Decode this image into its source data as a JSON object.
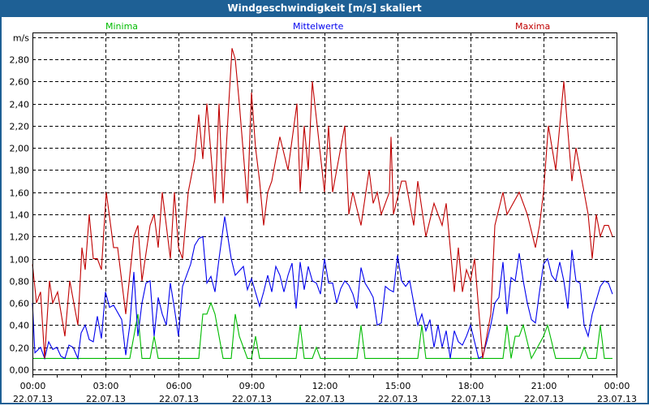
{
  "window": {
    "title": "Windgeschwindigkeit [m/s] skaliert"
  },
  "chart_data": {
    "type": "line",
    "title": "Windgeschwindigkeit [m/s] skaliert",
    "ylabel": "m/s",
    "ylim": [
      0,
      3.0
    ],
    "yticks": [
      "0,00",
      "0,20",
      "0,40",
      "0,60",
      "0,80",
      "1,00",
      "1,20",
      "1,40",
      "1,60",
      "1,80",
      "2,00",
      "2,20",
      "2,40",
      "2,60",
      "2,80"
    ],
    "xticks": [
      {
        "time": "00:00",
        "date": "22.07.13"
      },
      {
        "time": "03:00",
        "date": "22.07.13"
      },
      {
        "time": "06:00",
        "date": "22.07.13"
      },
      {
        "time": "09:00",
        "date": "22.07.13"
      },
      {
        "time": "12:00",
        "date": "22.07.13"
      },
      {
        "time": "15:00",
        "date": "22.07.13"
      },
      {
        "time": "18:00",
        "date": "22.07.13"
      },
      {
        "time": "21:00",
        "date": "22.07.13"
      },
      {
        "time": "00:00",
        "date": "23.07.13"
      }
    ],
    "xlim": [
      "22.07.13 00:00",
      "23.07.13 00:00"
    ],
    "grid": true,
    "legend_placement": "top",
    "series": [
      {
        "name": "Minima",
        "color": "#00bb00",
        "points": [
          [
            "00:00",
            0.1
          ],
          [
            "04:00",
            0.1
          ],
          [
            "04:20",
            0.5
          ],
          [
            "04:30",
            0.1
          ],
          [
            "04:50",
            0.1
          ],
          [
            "05:00",
            0.3
          ],
          [
            "05:10",
            0.1
          ],
          [
            "06:50",
            0.1
          ],
          [
            "07:00",
            0.5
          ],
          [
            "07:10",
            0.5
          ],
          [
            "07:20",
            0.6
          ],
          [
            "07:30",
            0.5
          ],
          [
            "07:50",
            0.1
          ],
          [
            "08:10",
            0.1
          ],
          [
            "08:20",
            0.5
          ],
          [
            "08:30",
            0.3
          ],
          [
            "08:50",
            0.1
          ],
          [
            "09:00",
            0.1
          ],
          [
            "09:10",
            0.3
          ],
          [
            "09:20",
            0.1
          ],
          [
            "10:50",
            0.1
          ],
          [
            "11:00",
            0.4
          ],
          [
            "11:10",
            0.1
          ],
          [
            "11:30",
            0.1
          ],
          [
            "11:40",
            0.2
          ],
          [
            "11:50",
            0.1
          ],
          [
            "13:20",
            0.1
          ],
          [
            "13:30",
            0.4
          ],
          [
            "13:40",
            0.1
          ],
          [
            "15:50",
            0.1
          ],
          [
            "16:00",
            0.4
          ],
          [
            "16:10",
            0.1
          ],
          [
            "19:20",
            0.1
          ],
          [
            "19:30",
            0.4
          ],
          [
            "19:40",
            0.1
          ],
          [
            "19:50",
            0.3
          ],
          [
            "20:00",
            0.3
          ],
          [
            "20:10",
            0.4
          ],
          [
            "20:30",
            0.1
          ],
          [
            "21:00",
            0.3
          ],
          [
            "21:10",
            0.4
          ],
          [
            "21:30",
            0.1
          ],
          [
            "22:30",
            0.1
          ],
          [
            "22:40",
            0.2
          ],
          [
            "22:50",
            0.1
          ],
          [
            "23:10",
            0.1
          ],
          [
            "23:20",
            0.4
          ],
          [
            "23:30",
            0.1
          ],
          [
            "23:50",
            0.1
          ]
        ]
      },
      {
        "name": "Mittelwerte",
        "color": "#0000ee",
        "points": [
          [
            "00:00",
            0.6
          ],
          [
            "00:06",
            0.15
          ],
          [
            "00:20",
            0.2
          ],
          [
            "00:30",
            0.1
          ],
          [
            "00:40",
            0.25
          ],
          [
            "00:50",
            0.18
          ],
          [
            "01:00",
            0.2
          ],
          [
            "01:10",
            0.12
          ],
          [
            "01:20",
            0.1
          ],
          [
            "01:30",
            0.22
          ],
          [
            "01:40",
            0.2
          ],
          [
            "01:52",
            0.1
          ],
          [
            "02:00",
            0.33
          ],
          [
            "02:10",
            0.4
          ],
          [
            "02:20",
            0.27
          ],
          [
            "02:30",
            0.25
          ],
          [
            "02:40",
            0.48
          ],
          [
            "02:50",
            0.28
          ],
          [
            "03:00",
            0.7
          ],
          [
            "03:10",
            0.56
          ],
          [
            "03:20",
            0.58
          ],
          [
            "03:40",
            0.45
          ],
          [
            "03:50",
            0.13
          ],
          [
            "04:00",
            0.4
          ],
          [
            "04:10",
            0.88
          ],
          [
            "04:20",
            0.3
          ],
          [
            "04:30",
            0.6
          ],
          [
            "04:40",
            0.78
          ],
          [
            "04:50",
            0.8
          ],
          [
            "05:00",
            0.3
          ],
          [
            "05:10",
            0.65
          ],
          [
            "05:20",
            0.5
          ],
          [
            "05:30",
            0.4
          ],
          [
            "05:40",
            0.78
          ],
          [
            "05:50",
            0.55
          ],
          [
            "06:00",
            0.3
          ],
          [
            "06:10",
            0.75
          ],
          [
            "06:30",
            0.95
          ],
          [
            "06:40",
            1.12
          ],
          [
            "06:50",
            1.18
          ],
          [
            "07:00",
            1.2
          ],
          [
            "07:10",
            0.78
          ],
          [
            "07:20",
            0.84
          ],
          [
            "07:30",
            0.7
          ],
          [
            "07:40",
            1.0
          ],
          [
            "07:54",
            1.38
          ],
          [
            "08:10",
            1.0
          ],
          [
            "08:20",
            0.85
          ],
          [
            "08:40",
            0.93
          ],
          [
            "08:50",
            0.72
          ],
          [
            "09:00",
            0.82
          ],
          [
            "09:20",
            0.57
          ],
          [
            "09:30",
            0.7
          ],
          [
            "09:40",
            0.85
          ],
          [
            "09:50",
            0.7
          ],
          [
            "10:00",
            0.93
          ],
          [
            "10:10",
            0.85
          ],
          [
            "10:20",
            0.7
          ],
          [
            "10:30",
            0.85
          ],
          [
            "10:40",
            0.96
          ],
          [
            "10:50",
            0.55
          ],
          [
            "11:00",
            0.97
          ],
          [
            "11:10",
            0.72
          ],
          [
            "11:20",
            0.93
          ],
          [
            "11:30",
            0.8
          ],
          [
            "11:40",
            0.78
          ],
          [
            "11:50",
            0.68
          ],
          [
            "12:00",
            1.0
          ],
          [
            "12:10",
            0.78
          ],
          [
            "12:20",
            0.78
          ],
          [
            "12:30",
            0.6
          ],
          [
            "12:40",
            0.73
          ],
          [
            "12:50",
            0.8
          ],
          [
            "13:00",
            0.76
          ],
          [
            "13:10",
            0.68
          ],
          [
            "13:20",
            0.55
          ],
          [
            "13:30",
            0.92
          ],
          [
            "13:40",
            0.78
          ],
          [
            "13:50",
            0.72
          ],
          [
            "14:00",
            0.65
          ],
          [
            "14:10",
            0.4
          ],
          [
            "14:20",
            0.42
          ],
          [
            "14:30",
            0.75
          ],
          [
            "14:40",
            0.72
          ],
          [
            "14:50",
            0.7
          ],
          [
            "15:00",
            1.03
          ],
          [
            "15:10",
            0.8
          ],
          [
            "15:20",
            0.75
          ],
          [
            "15:30",
            0.8
          ],
          [
            "15:40",
            0.6
          ],
          [
            "15:50",
            0.4
          ],
          [
            "16:00",
            0.5
          ],
          [
            "16:10",
            0.35
          ],
          [
            "16:20",
            0.45
          ],
          [
            "16:30",
            0.2
          ],
          [
            "16:40",
            0.4
          ],
          [
            "16:50",
            0.2
          ],
          [
            "17:00",
            0.35
          ],
          [
            "17:10",
            0.1
          ],
          [
            "17:20",
            0.35
          ],
          [
            "17:30",
            0.25
          ],
          [
            "17:40",
            0.22
          ],
          [
            "17:50",
            0.3
          ],
          [
            "18:00",
            0.4
          ],
          [
            "18:10",
            0.25
          ],
          [
            "18:20",
            0.1
          ],
          [
            "18:30",
            0.12
          ],
          [
            "18:40",
            0.25
          ],
          [
            "18:50",
            0.4
          ],
          [
            "19:00",
            0.6
          ],
          [
            "19:10",
            0.65
          ],
          [
            "19:20",
            0.97
          ],
          [
            "19:30",
            0.5
          ],
          [
            "19:40",
            0.83
          ],
          [
            "19:50",
            0.8
          ],
          [
            "20:00",
            1.05
          ],
          [
            "20:10",
            0.8
          ],
          [
            "20:20",
            0.6
          ],
          [
            "20:30",
            0.45
          ],
          [
            "20:40",
            0.42
          ],
          [
            "20:50",
            0.7
          ],
          [
            "21:00",
            0.95
          ],
          [
            "21:10",
            1.0
          ],
          [
            "21:20",
            0.85
          ],
          [
            "21:30",
            0.8
          ],
          [
            "21:40",
            0.97
          ],
          [
            "21:50",
            0.8
          ],
          [
            "22:00",
            0.55
          ],
          [
            "22:10",
            1.08
          ],
          [
            "22:20",
            0.8
          ],
          [
            "22:30",
            0.78
          ],
          [
            "22:40",
            0.4
          ],
          [
            "22:50",
            0.3
          ],
          [
            "23:00",
            0.5
          ],
          [
            "23:20",
            0.75
          ],
          [
            "23:30",
            0.8
          ],
          [
            "23:40",
            0.78
          ],
          [
            "23:50",
            0.68
          ]
        ]
      },
      {
        "name": "Maxima",
        "color": "#c00000",
        "points": [
          [
            "00:00",
            0.95
          ],
          [
            "00:10",
            0.6
          ],
          [
            "00:20",
            0.7
          ],
          [
            "00:30",
            0.1
          ],
          [
            "00:42",
            0.8
          ],
          [
            "00:50",
            0.6
          ],
          [
            "01:02",
            0.7
          ],
          [
            "01:20",
            0.3
          ],
          [
            "01:32",
            0.8
          ],
          [
            "01:52",
            0.4
          ],
          [
            "02:02",
            1.1
          ],
          [
            "02:10",
            0.9
          ],
          [
            "02:20",
            1.4
          ],
          [
            "02:30",
            1.0
          ],
          [
            "02:40",
            1.0
          ],
          [
            "02:50",
            0.9
          ],
          [
            "03:02",
            1.6
          ],
          [
            "03:20",
            1.1
          ],
          [
            "03:30",
            1.1
          ],
          [
            "03:50",
            0.5
          ],
          [
            "04:10",
            1.2
          ],
          [
            "04:20",
            1.3
          ],
          [
            "04:30",
            0.8
          ],
          [
            "04:50",
            1.3
          ],
          [
            "05:00",
            1.4
          ],
          [
            "05:10",
            1.1
          ],
          [
            "05:20",
            1.6
          ],
          [
            "05:40",
            1.0
          ],
          [
            "05:50",
            1.6
          ],
          [
            "06:00",
            1.1
          ],
          [
            "06:10",
            1.0
          ],
          [
            "06:24",
            1.6
          ],
          [
            "06:40",
            1.9
          ],
          [
            "06:50",
            2.3
          ],
          [
            "07:00",
            1.9
          ],
          [
            "07:10",
            2.4
          ],
          [
            "07:30",
            1.5
          ],
          [
            "07:40",
            2.4
          ],
          [
            "07:50",
            1.5
          ],
          [
            "08:04",
            2.4
          ],
          [
            "08:12",
            2.9
          ],
          [
            "08:20",
            2.8
          ],
          [
            "08:30",
            2.4
          ],
          [
            "08:50",
            1.5
          ],
          [
            "09:00",
            2.5
          ],
          [
            "09:10",
            2.0
          ],
          [
            "09:20",
            1.7
          ],
          [
            "09:30",
            1.3
          ],
          [
            "09:40",
            1.6
          ],
          [
            "09:50",
            1.7
          ],
          [
            "10:10",
            2.1
          ],
          [
            "10:30",
            1.8
          ],
          [
            "10:52",
            2.4
          ],
          [
            "11:00",
            1.6
          ],
          [
            "11:10",
            2.2
          ],
          [
            "11:20",
            1.8
          ],
          [
            "11:30",
            2.6
          ],
          [
            "12:00",
            1.6
          ],
          [
            "12:10",
            2.2
          ],
          [
            "12:20",
            1.6
          ],
          [
            "12:50",
            2.2
          ],
          [
            "13:00",
            1.4
          ],
          [
            "13:10",
            1.6
          ],
          [
            "13:30",
            1.3
          ],
          [
            "13:50",
            1.8
          ],
          [
            "14:00",
            1.5
          ],
          [
            "14:10",
            1.6
          ],
          [
            "14:20",
            1.4
          ],
          [
            "14:40",
            1.6
          ],
          [
            "14:44",
            2.1
          ],
          [
            "14:50",
            1.4
          ],
          [
            "15:10",
            1.7
          ],
          [
            "15:20",
            1.7
          ],
          [
            "15:40",
            1.3
          ],
          [
            "15:50",
            1.7
          ],
          [
            "16:10",
            1.2
          ],
          [
            "16:30",
            1.5
          ],
          [
            "16:50",
            1.3
          ],
          [
            "17:00",
            1.5
          ],
          [
            "17:20",
            0.7
          ],
          [
            "17:30",
            1.1
          ],
          [
            "17:40",
            0.7
          ],
          [
            "17:50",
            0.9
          ],
          [
            "18:00",
            0.8
          ],
          [
            "18:10",
            1.0
          ],
          [
            "18:30",
            0.1
          ],
          [
            "18:50",
            0.5
          ],
          [
            "19:00",
            1.3
          ],
          [
            "19:20",
            1.6
          ],
          [
            "19:30",
            1.4
          ],
          [
            "20:00",
            1.6
          ],
          [
            "20:20",
            1.4
          ],
          [
            "20:40",
            1.1
          ],
          [
            "20:50",
            1.3
          ],
          [
            "21:00",
            1.6
          ],
          [
            "21:12",
            2.2
          ],
          [
            "21:30",
            1.8
          ],
          [
            "21:50",
            2.6
          ],
          [
            "22:10",
            1.7
          ],
          [
            "22:20",
            2.0
          ],
          [
            "22:40",
            1.6
          ],
          [
            "22:50",
            1.4
          ],
          [
            "23:00",
            1.0
          ],
          [
            "23:10",
            1.4
          ],
          [
            "23:20",
            1.2
          ],
          [
            "23:30",
            1.3
          ],
          [
            "23:40",
            1.3
          ],
          [
            "23:50",
            1.2
          ]
        ]
      }
    ]
  }
}
